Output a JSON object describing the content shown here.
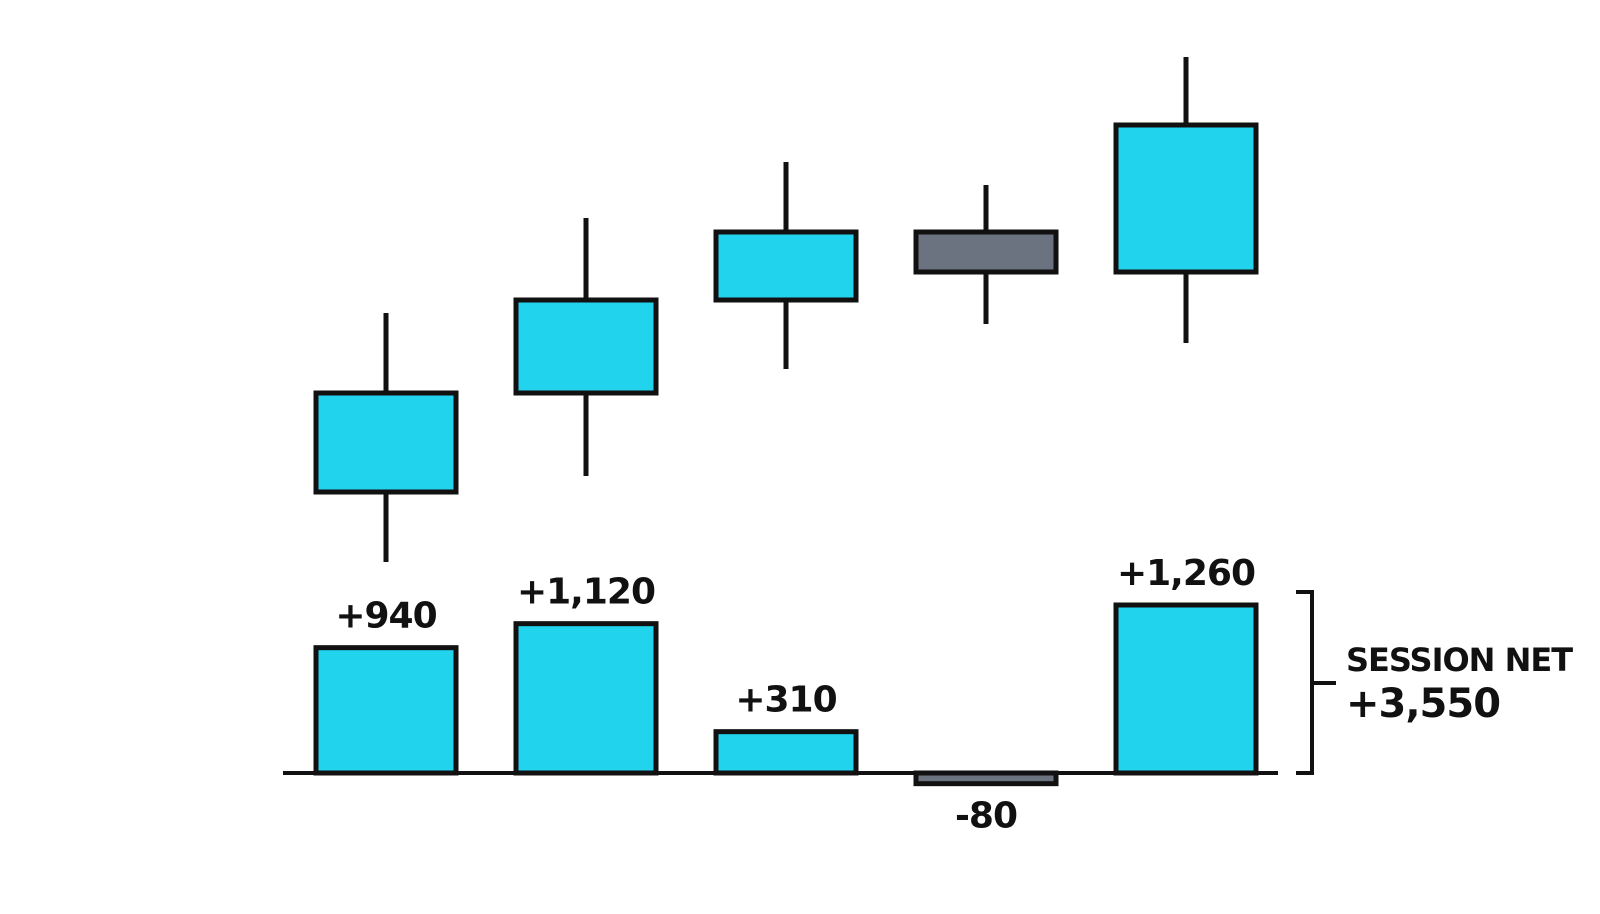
{
  "chart_data": [
    {
      "type": "candlestick",
      "open": [
        108,
        207,
        300,
        368,
        328
      ],
      "high": [
        287,
        382,
        438,
        415,
        543
      ],
      "low": [
        38,
        124,
        231,
        276,
        257
      ],
      "close": [
        207,
        300,
        368,
        328,
        475
      ],
      "ylim": [
        0,
        560
      ],
      "up_color": "#22d3ee",
      "down_color": "#6b7280"
    },
    {
      "type": "bar",
      "values": [
        940,
        1120,
        310,
        -80,
        1260
      ],
      "value_labels": [
        "+940",
        "+1,120",
        "+310",
        "-80",
        "+1,260"
      ],
      "ylim": [
        -300,
        1500
      ],
      "color": "#22d3ee",
      "negative_color": "#6b7280",
      "annotations": [
        "SESSION NET",
        "+3,550"
      ]
    }
  ]
}
